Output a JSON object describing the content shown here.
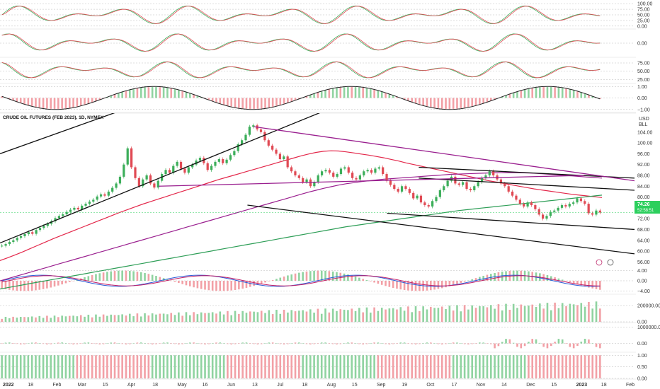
{
  "chart_data": {
    "type": "line",
    "title": "CRUDE OIL FUTURES (FEB 2023), 1D, NYMEX",
    "currency": "USD",
    "unit": "BLL",
    "last_price": "74.26",
    "last_price_sub": "52:58:51",
    "price_axis": {
      "ticks": [
        "104.00",
        "100.00",
        "96.00",
        "92.00",
        "88.00",
        "84.00",
        "80.00",
        "76.00",
        "72.00",
        "68.00",
        "64.00",
        "60.00",
        "56.00"
      ],
      "ylim": [
        54,
        111
      ]
    },
    "time_axis": {
      "labels": [
        "2022",
        "18",
        "Feb",
        "Mar",
        "15",
        "Apr",
        "18",
        "May",
        "16",
        "Jun",
        "13",
        "Jul",
        "18",
        "Aug",
        "15",
        "Sep",
        "19",
        "Oct",
        "17",
        "Nov",
        "14",
        "Dec",
        "15",
        "2023",
        "18",
        "Feb"
      ]
    },
    "price_series": {
      "name": "close",
      "values": [
        62.0,
        62.6,
        63.4,
        64.0,
        64.9,
        65.5,
        66.3,
        67.0,
        66.4,
        67.8,
        68.6,
        69.3,
        70.1,
        71.0,
        72.2,
        73.0,
        73.6,
        74.5,
        75.3,
        76.0,
        75.4,
        76.8,
        77.5,
        78.3,
        79.0,
        80.2,
        81.0,
        80.5,
        82.0,
        83.4,
        85.0,
        87.5,
        92.0,
        98.0,
        91.0,
        87.0,
        84.0,
        86.5,
        88.0,
        85.0,
        83.5,
        86.0,
        88.5,
        90.0,
        89.0,
        91.5,
        93.0,
        90.5,
        89.0,
        91.0,
        92.0,
        93.5,
        94.5,
        92.5,
        90.0,
        91.5,
        93.0,
        94.0,
        92.5,
        93.8,
        95.5,
        97.0,
        99.5,
        101.0,
        103.0,
        106.0,
        106.5,
        105.0,
        104.0,
        101.0,
        99.0,
        97.5,
        96.0,
        94.0,
        95.0,
        91.0,
        89.5,
        88.0,
        87.0,
        85.5,
        86.5,
        84.0,
        85.5,
        88.0,
        89.5,
        90.0,
        89.0,
        87.5,
        88.5,
        90.5,
        91.0,
        89.0,
        87.0,
        86.5,
        88.0,
        89.5,
        90.0,
        89.0,
        90.5,
        91.0,
        88.5,
        86.0,
        84.5,
        83.0,
        82.0,
        84.0,
        83.0,
        81.5,
        79.5,
        80.5,
        78.0,
        77.0,
        76.5,
        78.5,
        80.0,
        82.5,
        84.0,
        86.0,
        87.5,
        85.0,
        84.5,
        85.5,
        83.0,
        82.5,
        84.0,
        85.5,
        87.0,
        88.0,
        89.5,
        88.0,
        86.5,
        85.0,
        84.0,
        82.0,
        80.5,
        79.0,
        77.5,
        76.5,
        78.0,
        77.0,
        75.5,
        73.5,
        72.0,
        73.0,
        74.5,
        75.0,
        76.0,
        77.0,
        76.5,
        77.5,
        78.0,
        79.5,
        78.5,
        77.5,
        74.0,
        73.5,
        75.0,
        74.26
      ],
      "ylim": [
        54,
        111
      ]
    },
    "moving_averages": [
      {
        "color": "#e3274a",
        "label": "",
        "values": [
          56.5,
          57.5,
          58.6,
          59.7,
          60.9,
          62.1,
          63.3,
          64.5,
          65.6,
          66.7,
          67.8,
          68.9,
          70.0,
          71.1,
          72.2,
          73.3,
          74.4,
          75.4,
          76.4,
          77.4,
          78.3,
          79.2,
          80.1,
          81.0,
          81.9,
          82.8,
          83.7,
          84.6,
          85.5,
          86.4,
          87.2,
          88.0,
          88.8,
          89.6,
          90.4,
          91.2,
          92.0,
          92.8,
          93.6,
          94.4,
          95.2,
          95.9,
          96.5,
          96.9,
          97.1,
          97.0,
          96.7,
          96.3,
          95.9,
          95.5,
          95.0,
          94.5,
          93.9,
          93.3,
          92.6,
          92.0,
          91.4,
          90.8,
          90.2,
          89.6,
          89.0,
          88.4,
          87.8,
          87.2,
          86.6,
          86.0,
          85.5,
          85.0,
          84.5,
          84.0,
          83.5,
          83.0,
          82.6,
          82.2,
          81.8,
          81.4,
          81.0,
          80.7,
          80.4,
          80.1,
          79.8
        ]
      },
      {
        "color": "#9a1f8f",
        "label": "",
        "values": [
          49.0,
          49.8,
          50.6,
          51.4,
          52.2,
          53.0,
          53.8,
          54.6,
          55.4,
          56.2,
          57.0,
          57.8,
          58.6,
          59.4,
          60.2,
          61.0,
          61.8,
          62.6,
          63.4,
          64.2,
          65.0,
          65.8,
          66.6,
          67.4,
          68.2,
          69.0,
          69.8,
          70.6,
          71.4,
          72.2,
          73.0,
          73.8,
          74.6,
          75.4,
          76.2,
          77.0,
          77.8,
          78.6,
          79.4,
          80.2,
          81.0,
          81.8,
          82.5,
          83.2,
          83.8,
          84.4,
          84.9,
          85.3,
          85.7,
          86.0,
          86.3,
          86.6,
          86.8,
          87.0,
          87.2,
          87.4,
          87.6,
          87.8,
          88.0,
          88.2,
          88.4,
          88.5,
          88.6,
          88.7,
          88.8,
          88.9,
          89.0,
          89.0,
          89.0,
          89.0,
          88.9,
          88.8,
          88.6,
          88.4,
          88.2,
          88.0,
          87.8,
          87.6,
          87.4,
          87.2,
          87.0
        ]
      },
      {
        "color": "#2e9e57",
        "label": "",
        "values": [
          46.0,
          46.5,
          47.0,
          47.5,
          48.0,
          48.5,
          49.0,
          49.5,
          50.0,
          50.5,
          51.0,
          51.5,
          52.0,
          52.5,
          53.0,
          53.5,
          54.0,
          54.5,
          55.0,
          55.5,
          56.0,
          56.5,
          57.0,
          57.5,
          58.0,
          58.5,
          59.0,
          59.5,
          60.0,
          60.5,
          61.0,
          61.5,
          62.0,
          62.5,
          63.0,
          63.5,
          64.0,
          64.5,
          65.0,
          65.5,
          66.0,
          66.5,
          67.0,
          67.5,
          68.0,
          68.5,
          69.0,
          69.4,
          69.8,
          70.2,
          70.6,
          71.0,
          71.4,
          71.8,
          72.2,
          72.6,
          73.0,
          73.4,
          73.8,
          74.2,
          74.6,
          75.0,
          75.3,
          75.6,
          75.9,
          76.2,
          76.5,
          76.8,
          77.1,
          77.4,
          77.7,
          78.0,
          78.3,
          78.6,
          78.9,
          79.2,
          79.5,
          79.8,
          80.1,
          80.4,
          80.7
        ]
      }
    ],
    "trend_lines": [
      {
        "color": "#111111",
        "points": [
          [
            0,
            96.0
          ],
          [
            0.37,
            127.0
          ]
        ]
      },
      {
        "color": "#111111",
        "points": [
          [
            0,
            63.0
          ],
          [
            0.67,
            127.0
          ]
        ]
      },
      {
        "color": "#111111",
        "points": [
          [
            0.39,
            77.0
          ],
          [
            1.0,
            59.0
          ]
        ]
      },
      {
        "color": "#111111",
        "points": [
          [
            0.61,
            74.0
          ],
          [
            1.0,
            68.0
          ]
        ]
      },
      {
        "color": "#111111",
        "points": [
          [
            0.66,
            91.0
          ],
          [
            1.0,
            87.0
          ]
        ]
      },
      {
        "color": "#111111",
        "points": [
          [
            0.66,
            87.0
          ],
          [
            1.0,
            82.5
          ]
        ]
      },
      {
        "color": "#9a1f8f",
        "points": [
          [
            0.4,
            106.0
          ],
          [
            1.0,
            86.0
          ]
        ]
      },
      {
        "color": "#9a1f8f",
        "points": [
          [
            0.25,
            84.0
          ],
          [
            0.92,
            88.0
          ]
        ]
      }
    ],
    "panels": [
      {
        "name": "stoch",
        "type": "line",
        "ticks": [
          "100.00",
          "75.00",
          "50.00",
          "25.00",
          "0.00"
        ],
        "ylim": [
          -10,
          110
        ]
      },
      {
        "name": "momentum",
        "type": "line",
        "ticks": [
          "0.00"
        ],
        "ylim": [
          -1,
          1
        ]
      },
      {
        "name": "rsi",
        "type": "line",
        "ticks": [
          "75.00",
          "50.00",
          "25.00"
        ],
        "ylim": [
          15,
          90
        ]
      },
      {
        "name": "oscillator",
        "type": "histogram",
        "ticks": [
          "1.00",
          "0.00",
          "−1.00"
        ],
        "ylim": [
          -1.2,
          1.2
        ]
      },
      {
        "name": "macd",
        "type": "histogram",
        "ticks": [
          "4.00",
          "0.00",
          "−4.00"
        ],
        "ylim": [
          -5,
          5
        ]
      },
      {
        "name": "volume",
        "type": "bar",
        "ticks": [
          "200000.00",
          "0.00"
        ],
        "ylim": [
          0,
          330000
        ]
      },
      {
        "name": "delta",
        "type": "histogram",
        "ticks": [
          "1000000.00",
          "0.00"
        ],
        "ylim": [
          -500000,
          1250000
        ]
      },
      {
        "name": "trend",
        "type": "bar",
        "ticks": [
          "1.00",
          "0.50",
          "0.00"
        ],
        "ylim": [
          0,
          1.1
        ]
      }
    ],
    "colors": {
      "up": "#3cae5a",
      "down": "#e04a54",
      "accent_green": "#2ccf5d"
    }
  }
}
